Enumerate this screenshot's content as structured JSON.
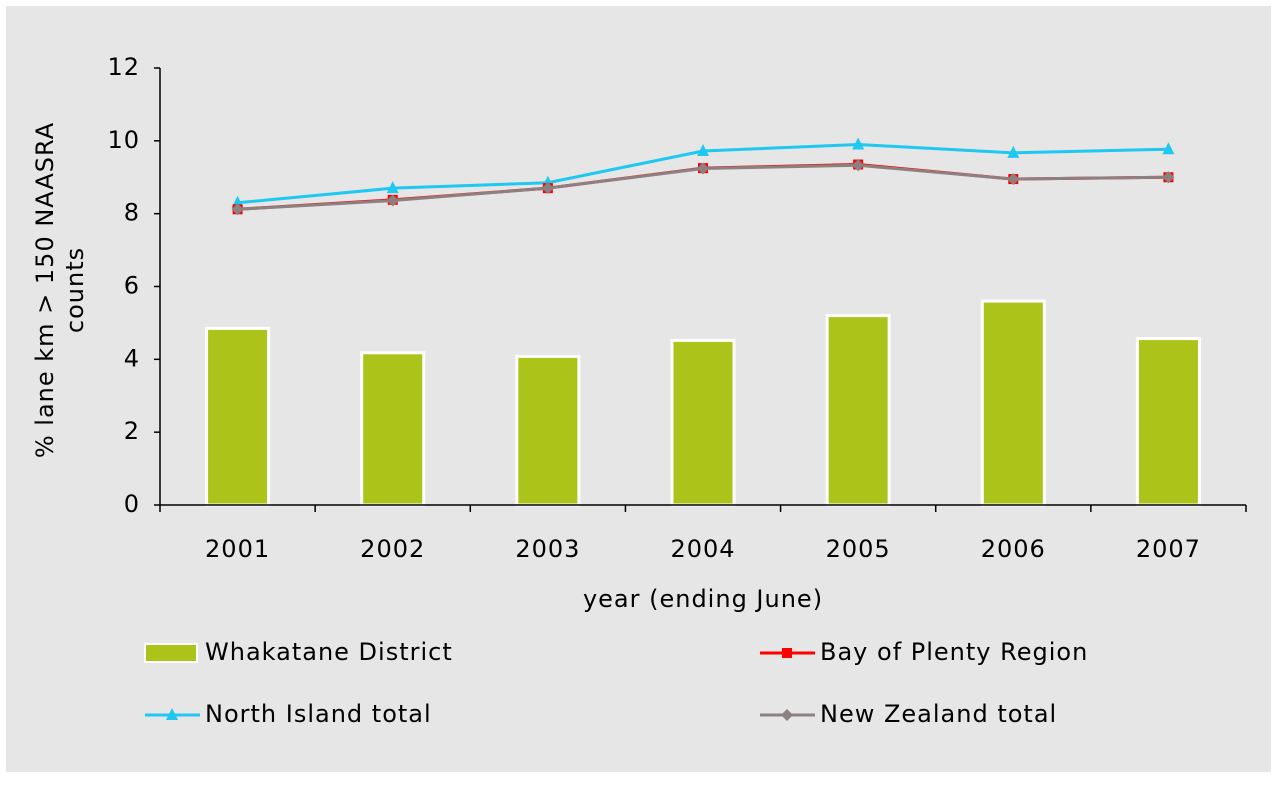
{
  "chart_data": {
    "type": "bar_line",
    "x_label": "year (ending June)",
    "y_label": "% lane km > 150 NAASRA counts",
    "categories": [
      "2001",
      "2002",
      "2003",
      "2004",
      "2005",
      "2006",
      "2007"
    ],
    "ylim": [
      0,
      12
    ],
    "yticks": [
      0,
      2,
      4,
      6,
      8,
      10,
      12
    ],
    "series": [
      {
        "name": "Whakatane District",
        "kind": "bar",
        "color": "#acc419",
        "values": [
          4.85,
          4.18,
          4.08,
          4.52,
          5.2,
          5.6,
          4.57
        ]
      },
      {
        "name": "Bay of Plenty Region",
        "kind": "line",
        "marker": "square",
        "color": "#ff0000",
        "values": [
          8.12,
          8.38,
          8.7,
          9.25,
          9.35,
          8.95,
          9.0
        ]
      },
      {
        "name": "North Island total",
        "kind": "line",
        "marker": "triangle",
        "color": "#1ec8f0",
        "values": [
          8.3,
          8.7,
          8.85,
          9.72,
          9.9,
          9.67,
          9.77
        ]
      },
      {
        "name": "New Zealand total",
        "kind": "line",
        "marker": "diamond",
        "color": "#8c8080",
        "values": [
          8.12,
          8.36,
          8.7,
          9.24,
          9.33,
          8.95,
          9.0
        ]
      }
    ]
  }
}
